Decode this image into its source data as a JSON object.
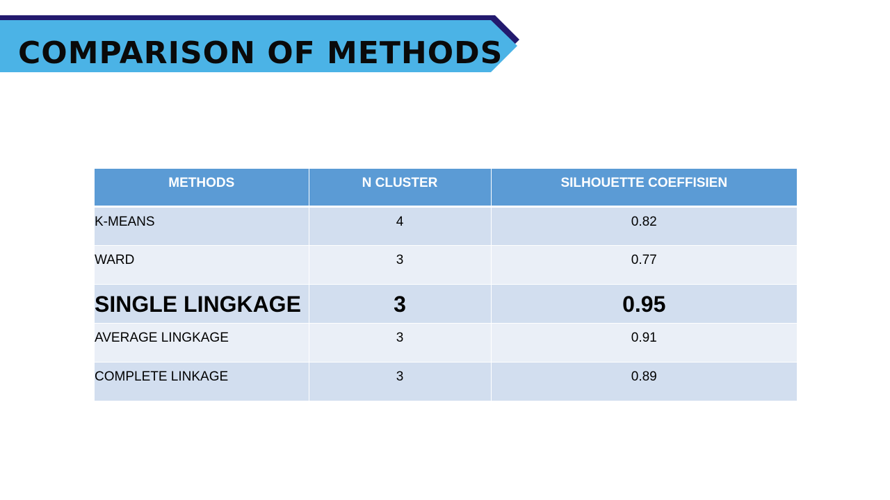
{
  "slide": {
    "title": "COMPARISON OF METHODS",
    "colors": {
      "banner_fill": "#4bb3e6",
      "banner_shadow": "#231a6e",
      "header_fill": "#5b9bd5",
      "row_dark": "#d2deef",
      "row_light": "#eaeff7"
    }
  },
  "table": {
    "headers": [
      "METHODS",
      "N CLUSTER",
      "SILHOUETTE COEFFISIEN"
    ],
    "rows": [
      {
        "method": "K-MEANS",
        "n_cluster": "4",
        "silhouette": "0.82",
        "highlight": false
      },
      {
        "method": "WARD",
        "n_cluster": "3",
        "silhouette": "0.77",
        "highlight": false
      },
      {
        "method": "SINGLE LINGKAGE",
        "n_cluster": "3",
        "silhouette": "0.95",
        "highlight": true
      },
      {
        "method": "AVERAGE LINGKAGE",
        "n_cluster": "3",
        "silhouette": "0.91",
        "highlight": false
      },
      {
        "method": "COMPLETE LINKAGE",
        "n_cluster": "3",
        "silhouette": "0.89",
        "highlight": false
      }
    ]
  }
}
